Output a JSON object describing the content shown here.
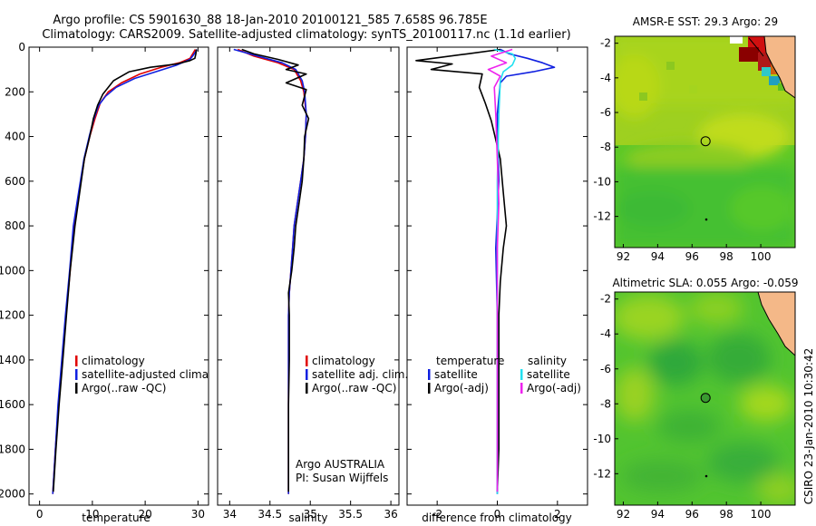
{
  "header": {
    "title_line1": "Argo profile: CS 5901630_88 18-Jan-2010 20100121_585 7.658S 96.785E",
    "title_line2": "Climatology: CARS2009. Satellite-adjusted climatology: synTS_20100117.nc (1.1d earlier)"
  },
  "footer_credit": "CSIRO 23-Jan-2010 10:30:42",
  "colors": {
    "climatology": "#e00000",
    "satellite": "#1020e0",
    "argo": "#000000",
    "satellite_salinity": "#22e0f0",
    "argo_salinity": "#ee22ee",
    "map_land": "#f4b888",
    "map_sea": "#55cc22"
  },
  "chart_data": [
    {
      "id": "temperature",
      "type": "line",
      "xlabel": "temperature",
      "ylabel": "",
      "xlim": [
        -2,
        32
      ],
      "ylim": [
        2050,
        0
      ],
      "xticks": [
        0,
        10,
        20,
        30
      ],
      "yticks": [
        0,
        200,
        400,
        600,
        800,
        1000,
        1200,
        1400,
        1600,
        1800,
        2000
      ],
      "legend": [
        "climatology",
        "satellite-adjusted climatology",
        "Argo(..raw -QC)"
      ],
      "series": [
        {
          "name": "climatology",
          "color": "#e00000",
          "points": [
            [
              29.5,
              10
            ],
            [
              29.0,
              30
            ],
            [
              28.5,
              50
            ],
            [
              26.5,
              70
            ],
            [
              23,
              90
            ],
            [
              19,
              120
            ],
            [
              15.5,
              160
            ],
            [
              13,
              200
            ],
            [
              11.5,
              250
            ],
            [
              10.5,
              320
            ],
            [
              9.5,
              400
            ],
            [
              8.5,
              500
            ],
            [
              7.5,
              650
            ],
            [
              6.5,
              800
            ],
            [
              5.8,
              1000
            ],
            [
              5,
              1200
            ],
            [
              4.3,
              1400
            ],
            [
              3.6,
              1600
            ],
            [
              3,
              1800
            ],
            [
              2.5,
              2000
            ]
          ]
        },
        {
          "name": "satellite",
          "color": "#1020e0",
          "points": [
            [
              29.8,
              10
            ],
            [
              29.3,
              30
            ],
            [
              28.5,
              55
            ],
            [
              26,
              80
            ],
            [
              22,
              110
            ],
            [
              18,
              140
            ],
            [
              14.5,
              180
            ],
            [
              12.5,
              220
            ],
            [
              11.2,
              260
            ],
            [
              10.3,
              320
            ],
            [
              9.4,
              400
            ],
            [
              8.4,
              500
            ],
            [
              7.4,
              650
            ],
            [
              6.4,
              800
            ],
            [
              5.7,
              1000
            ],
            [
              4.9,
              1200
            ],
            [
              4.2,
              1400
            ],
            [
              3.5,
              1600
            ],
            [
              3,
              1800
            ],
            [
              2.5,
              2000
            ]
          ]
        },
        {
          "name": "Argo",
          "color": "#000000",
          "points": [
            [
              29.7,
              10
            ],
            [
              29.6,
              30
            ],
            [
              29.4,
              50
            ],
            [
              28.5,
              60
            ],
            [
              26,
              75
            ],
            [
              21,
              90
            ],
            [
              17,
              110
            ],
            [
              14,
              150
            ],
            [
              12,
              210
            ],
            [
              11,
              260
            ],
            [
              10.2,
              320
            ],
            [
              9.5,
              400
            ],
            [
              8.5,
              500
            ],
            [
              7.6,
              650
            ],
            [
              6.7,
              800
            ],
            [
              5.8,
              1000
            ],
            [
              5.1,
              1200
            ],
            [
              4.4,
              1400
            ],
            [
              3.7,
              1600
            ],
            [
              3.1,
              1800
            ],
            [
              2.6,
              1990
            ]
          ]
        }
      ]
    },
    {
      "id": "salinity",
      "type": "line",
      "xlabel": "salinity",
      "ylabel": "",
      "xlim": [
        33.85,
        36.1
      ],
      "ylim": [
        2050,
        0
      ],
      "xticks": [
        34,
        34.5,
        35,
        35.5,
        36
      ],
      "yticks": [
        0,
        200,
        400,
        600,
        800,
        1000,
        1200,
        1400,
        1600,
        1800,
        2000
      ],
      "legend": [
        "climatology",
        "satellite adj. clim.",
        "Argo(..raw -QC)"
      ],
      "annotation_lines": [
        "Argo AUSTRALIA",
        "PI: Susan Wijffels"
      ],
      "series": [
        {
          "name": "climatology",
          "color": "#e00000",
          "points": [
            [
              34.1,
              10
            ],
            [
              34.3,
              40
            ],
            [
              34.6,
              70
            ],
            [
              34.8,
              100
            ],
            [
              34.88,
              150
            ],
            [
              34.92,
              200
            ],
            [
              34.95,
              300
            ],
            [
              34.94,
              400
            ],
            [
              34.92,
              500
            ],
            [
              34.88,
              600
            ],
            [
              34.84,
              700
            ],
            [
              34.8,
              800
            ],
            [
              34.78,
              900
            ],
            [
              34.76,
              1000
            ],
            [
              34.74,
              1100
            ],
            [
              34.73,
              1200
            ],
            [
              34.73,
              1400
            ],
            [
              34.73,
              1600
            ],
            [
              34.73,
              1800
            ],
            [
              34.73,
              2000
            ]
          ]
        },
        {
          "name": "satellite",
          "color": "#1020e0",
          "points": [
            [
              34.05,
              10
            ],
            [
              34.35,
              40
            ],
            [
              34.65,
              70
            ],
            [
              34.82,
              100
            ],
            [
              34.9,
              150
            ],
            [
              34.93,
              200
            ],
            [
              34.95,
              300
            ],
            [
              34.94,
              400
            ],
            [
              34.92,
              500
            ],
            [
              34.88,
              600
            ],
            [
              34.84,
              700
            ],
            [
              34.8,
              800
            ],
            [
              34.78,
              900
            ],
            [
              34.76,
              1000
            ],
            [
              34.74,
              1100
            ],
            [
              34.73,
              1200
            ],
            [
              34.73,
              1400
            ],
            [
              34.73,
              1600
            ],
            [
              34.73,
              1800
            ],
            [
              34.73,
              2000
            ]
          ]
        },
        {
          "name": "Argo",
          "color": "#000000",
          "points": [
            [
              34.15,
              10
            ],
            [
              34.3,
              30
            ],
            [
              34.6,
              55
            ],
            [
              34.85,
              80
            ],
            [
              34.7,
              100
            ],
            [
              34.95,
              120
            ],
            [
              34.7,
              160
            ],
            [
              34.95,
              190
            ],
            [
              34.9,
              260
            ],
            [
              34.98,
              320
            ],
            [
              34.93,
              400
            ],
            [
              34.92,
              500
            ],
            [
              34.9,
              600
            ],
            [
              34.86,
              700
            ],
            [
              34.82,
              800
            ],
            [
              34.8,
              900
            ],
            [
              34.77,
              1000
            ],
            [
              34.73,
              1100
            ],
            [
              34.74,
              1200
            ],
            [
              34.74,
              1400
            ],
            [
              34.73,
              1600
            ],
            [
              34.73,
              1800
            ],
            [
              34.73,
              1990
            ]
          ]
        }
      ]
    },
    {
      "id": "difference",
      "type": "line",
      "xlabel": "difference from climatology",
      "ylabel": "",
      "xlim": [
        -3,
        3
      ],
      "ylim": [
        2050,
        0
      ],
      "xticks": [
        -2,
        0,
        2
      ],
      "yticks": [
        0,
        200,
        400,
        600,
        800,
        1000,
        1200,
        1400,
        1600,
        1800,
        2000
      ],
      "legend_groups": [
        {
          "title": "temperature",
          "items": [
            "satellite",
            "Argo(-adj)"
          ]
        },
        {
          "title": "salinity",
          "items": [
            "satellite",
            "Argo(-adj)"
          ]
        }
      ],
      "series": [
        {
          "name": "temperature satellite",
          "color": "#1020e0",
          "points": [
            [
              0.1,
              10
            ],
            [
              0.4,
              30
            ],
            [
              1.0,
              50
            ],
            [
              1.5,
              70
            ],
            [
              1.9,
              90
            ],
            [
              1.2,
              110
            ],
            [
              0.3,
              130
            ],
            [
              0.1,
              160
            ],
            [
              0.0,
              300
            ],
            [
              0.05,
              600
            ],
            [
              -0.05,
              900
            ],
            [
              0.0,
              1200
            ],
            [
              0.0,
              1500
            ],
            [
              0.0,
              1800
            ],
            [
              0.0,
              2000
            ]
          ]
        },
        {
          "name": "temperature Argo(-adj)",
          "color": "#000000",
          "points": [
            [
              0.1,
              10
            ],
            [
              -1.0,
              30
            ],
            [
              -2.7,
              60
            ],
            [
              -1.5,
              75
            ],
            [
              -2.2,
              100
            ],
            [
              -0.5,
              120
            ],
            [
              -0.6,
              180
            ],
            [
              -0.4,
              250
            ],
            [
              -0.2,
              330
            ],
            [
              0.1,
              500
            ],
            [
              0.2,
              650
            ],
            [
              0.3,
              800
            ],
            [
              0.2,
              900
            ],
            [
              0.1,
              1050
            ],
            [
              0.05,
              1200
            ],
            [
              0.05,
              1500
            ],
            [
              0.05,
              1800
            ],
            [
              0.0,
              1990
            ]
          ]
        },
        {
          "name": "salinity satellite",
          "color": "#22e0f0",
          "points": [
            [
              -0.1,
              10
            ],
            [
              0.5,
              30
            ],
            [
              0.6,
              50
            ],
            [
              0.5,
              80
            ],
            [
              0.2,
              110
            ],
            [
              0.1,
              150
            ],
            [
              0.05,
              300
            ],
            [
              0.0,
              600
            ],
            [
              0.0,
              1000
            ],
            [
              0.0,
              1400
            ],
            [
              0.0,
              1800
            ],
            [
              0.0,
              2000
            ]
          ]
        },
        {
          "name": "salinity Argo(-adj)",
          "color": "#ee22ee",
          "points": [
            [
              0.5,
              10
            ],
            [
              -0.2,
              40
            ],
            [
              0.3,
              70
            ],
            [
              -0.3,
              100
            ],
            [
              0.1,
              130
            ],
            [
              -0.1,
              180
            ],
            [
              -0.05,
              300
            ],
            [
              0.0,
              500
            ],
            [
              0.05,
              700
            ],
            [
              0.0,
              900
            ],
            [
              0.0,
              1200
            ],
            [
              0.0,
              1600
            ],
            [
              0.0,
              1990
            ]
          ]
        }
      ]
    },
    {
      "id": "sst_map",
      "type": "heatmap",
      "title": "AMSR-E SST: 29.3 Argo: 29",
      "xlim": [
        91.5,
        102
      ],
      "ylim": [
        -13.8,
        -1.6
      ],
      "xticks": [
        92,
        94,
        96,
        98,
        100
      ],
      "yticks": [
        -2,
        -4,
        -6,
        -8,
        -10,
        -12
      ],
      "profile_location": [
        96.785,
        -7.658
      ]
    },
    {
      "id": "sla_map",
      "type": "heatmap",
      "title": "Altimetric SLA: 0.055 Argo: -0.059",
      "xlim": [
        91.5,
        102
      ],
      "ylim": [
        -13.8,
        -1.6
      ],
      "xticks": [
        92,
        94,
        96,
        98,
        100
      ],
      "yticks": [
        -2,
        -4,
        -6,
        -8,
        -10,
        -12
      ],
      "profile_location": [
        96.785,
        -7.658
      ]
    }
  ]
}
